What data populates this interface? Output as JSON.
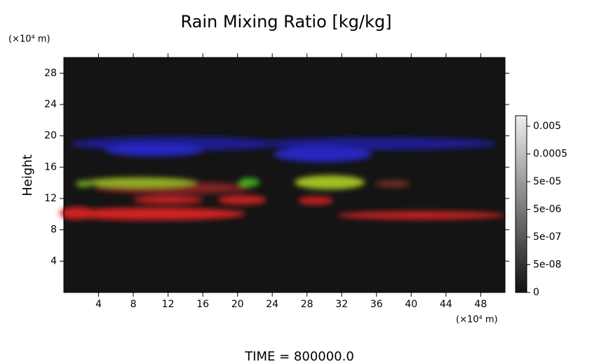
{
  "chart_data": {
    "type": "heatmap",
    "title": "Rain Mixing Ratio [kg/kg]",
    "y_unit": "(×10⁴ m)",
    "y_label": "Height",
    "x_unit": "(×10⁴ m)",
    "footer": "TIME = 800000.0",
    "xlim": [
      0,
      50.8
    ],
    "xticks": [
      4,
      8,
      12,
      16,
      20,
      24,
      28,
      32,
      36,
      40,
      44,
      48
    ],
    "ylim": [
      0,
      30
    ],
    "yticks": [
      4,
      8,
      12,
      16,
      20,
      24,
      28
    ],
    "colorbar_ticks": [
      {
        "value": 0.005,
        "label": "0.005"
      },
      {
        "value": 0.0005,
        "label": "0.0005"
      },
      {
        "value": 5e-05,
        "label": "5e-05"
      },
      {
        "value": 5e-06,
        "label": "5e-06"
      },
      {
        "value": 5e-07,
        "label": "5e-07"
      },
      {
        "value": 5e-08,
        "label": "5e-08"
      },
      0
    ]
  }
}
